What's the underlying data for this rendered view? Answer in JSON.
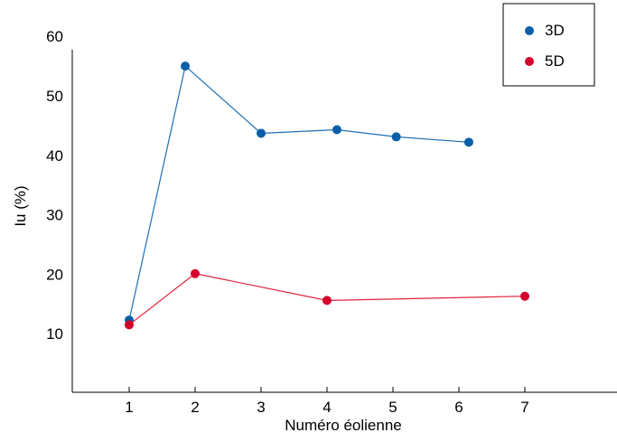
{
  "chart_data": {
    "type": "line",
    "title": "",
    "xlabel": "Numéro éolienne",
    "ylabel": "Iu (%)",
    "ylim": [
      0,
      60
    ],
    "xlim": [
      0,
      8
    ],
    "x_ticks": [
      "1",
      "2",
      "3",
      "4",
      "5",
      "6",
      "7"
    ],
    "y_ticks": [
      "10",
      "20",
      "30",
      "40",
      "50",
      "60"
    ],
    "grid": false,
    "legend_position": "top-right",
    "series": [
      {
        "name": "3D",
        "color": "#1f6fb4",
        "marker_color": "#0b5fa8",
        "points": [
          {
            "x": 1,
            "y": 12.3
          },
          {
            "x": 1.85,
            "y": 55.0
          },
          {
            "x": 3,
            "y": 43.7
          },
          {
            "x": 4.15,
            "y": 44.3
          },
          {
            "x": 5.05,
            "y": 43.1
          },
          {
            "x": 6.15,
            "y": 42.2
          }
        ]
      },
      {
        "name": "5D",
        "color": "#e0203a",
        "marker_color": "#d4002a",
        "points": [
          {
            "x": 1,
            "y": 11.5
          },
          {
            "x": 2,
            "y": 20.1
          },
          {
            "x": 4,
            "y": 15.6
          },
          {
            "x": 7,
            "y": 16.3
          }
        ]
      }
    ]
  }
}
